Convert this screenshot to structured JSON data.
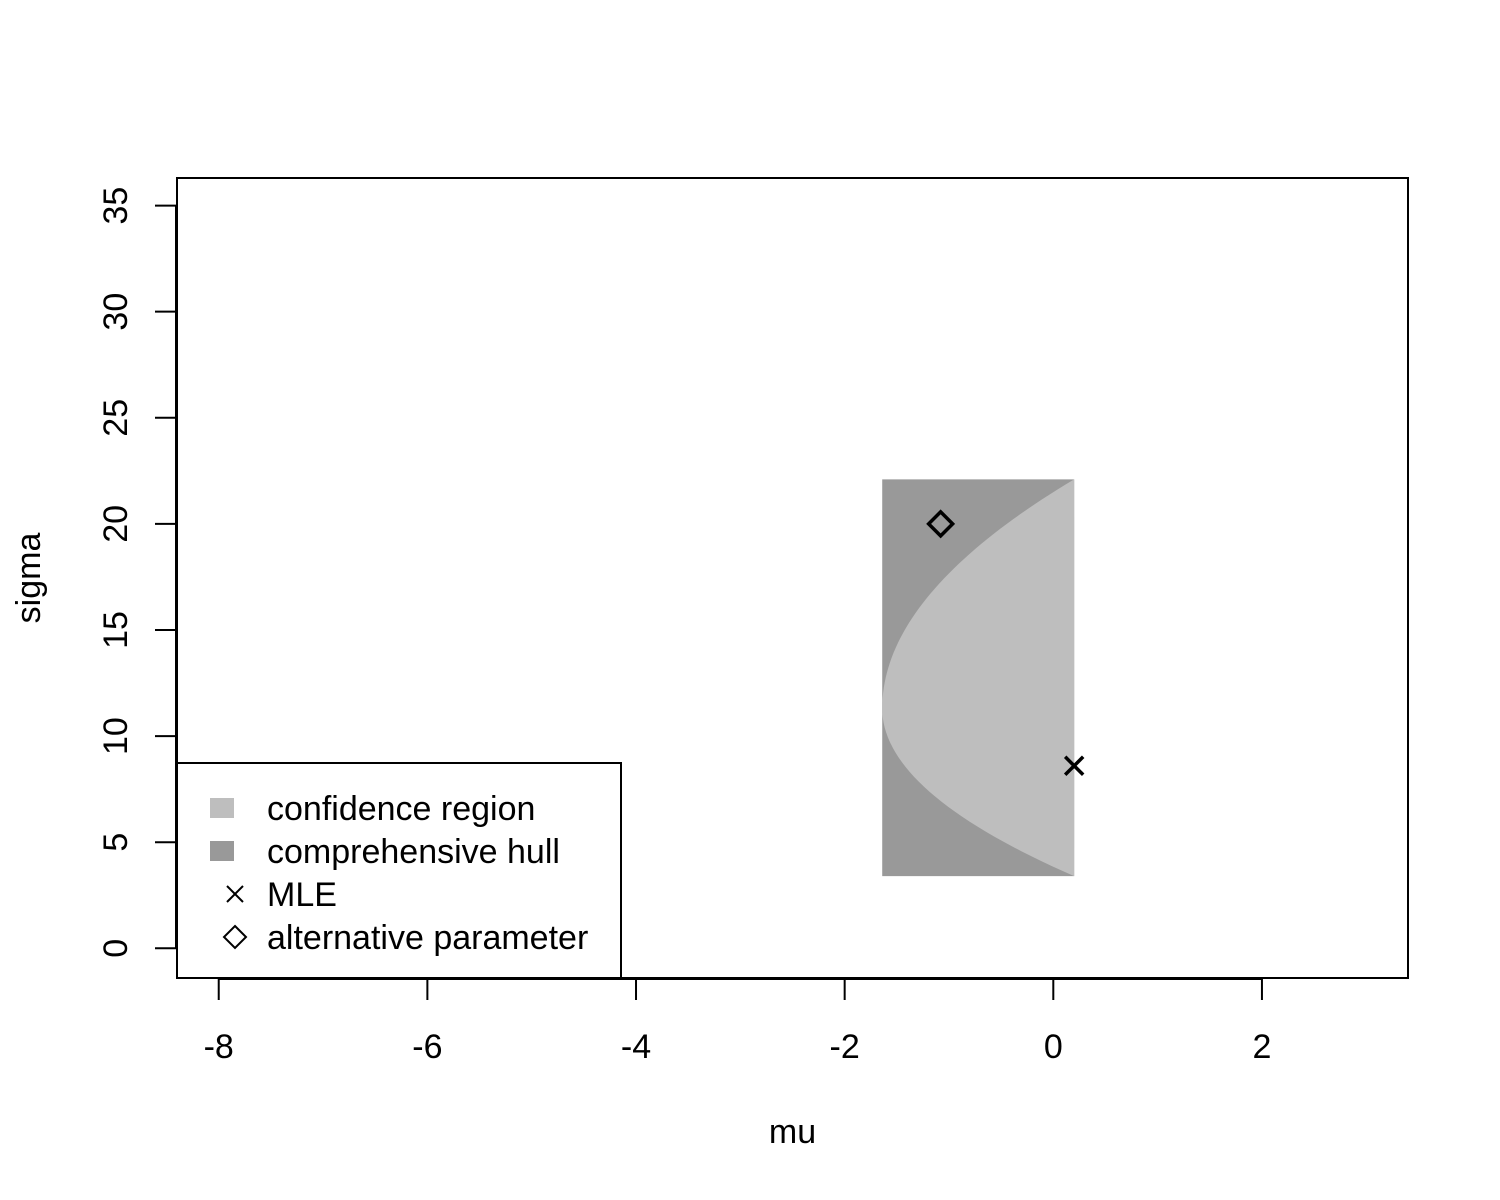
{
  "chart_data": {
    "type": "scatter",
    "title": "",
    "xlabel": "mu",
    "ylabel": "sigma",
    "xlim": [
      -8.4,
      3.4
    ],
    "ylim": [
      -1.4,
      36.3
    ],
    "x_ticks": [
      -8,
      -6,
      -4,
      -2,
      0,
      2
    ],
    "x_tick_labels": [
      "-8",
      "-6",
      "-4",
      "-2",
      "0",
      "2"
    ],
    "y_ticks": [
      0,
      5,
      10,
      15,
      20,
      25,
      30,
      35
    ],
    "y_tick_labels": [
      "0",
      "5",
      "10",
      "15",
      "20",
      "25",
      "30",
      "35"
    ],
    "grid": false,
    "regions": [
      {
        "name": "comprehensive hull",
        "color": "#999999",
        "polygon": [
          [
            -1.64,
            22.1
          ],
          [
            0.2,
            22.1
          ],
          [
            0.2,
            3.4
          ],
          [
            -1.64,
            3.4
          ]
        ]
      },
      {
        "name": "confidence region",
        "color": "#bebebe",
        "boundary": {
          "vertex": [
            -1.64,
            11.3
          ],
          "x_right": 0.2,
          "y_top": 22.1,
          "y_bottom": 3.4
        }
      }
    ],
    "points": [
      {
        "name": "MLE",
        "symbol": "cross",
        "x": 0.2,
        "y": 8.6
      },
      {
        "name": "alternative parameter",
        "symbol": "diamond",
        "x": -1.08,
        "y": 20.0
      }
    ],
    "legend": {
      "position": "bottom-left",
      "entries": [
        {
          "label": "confidence region",
          "symbol": "square",
          "color": "#bebebe"
        },
        {
          "label": "comprehensive hull",
          "symbol": "square",
          "color": "#999999"
        },
        {
          "label": "MLE",
          "symbol": "cross",
          "color": "#000000"
        },
        {
          "label": "alternative parameter",
          "symbol": "diamond",
          "color": "#000000"
        }
      ]
    }
  }
}
